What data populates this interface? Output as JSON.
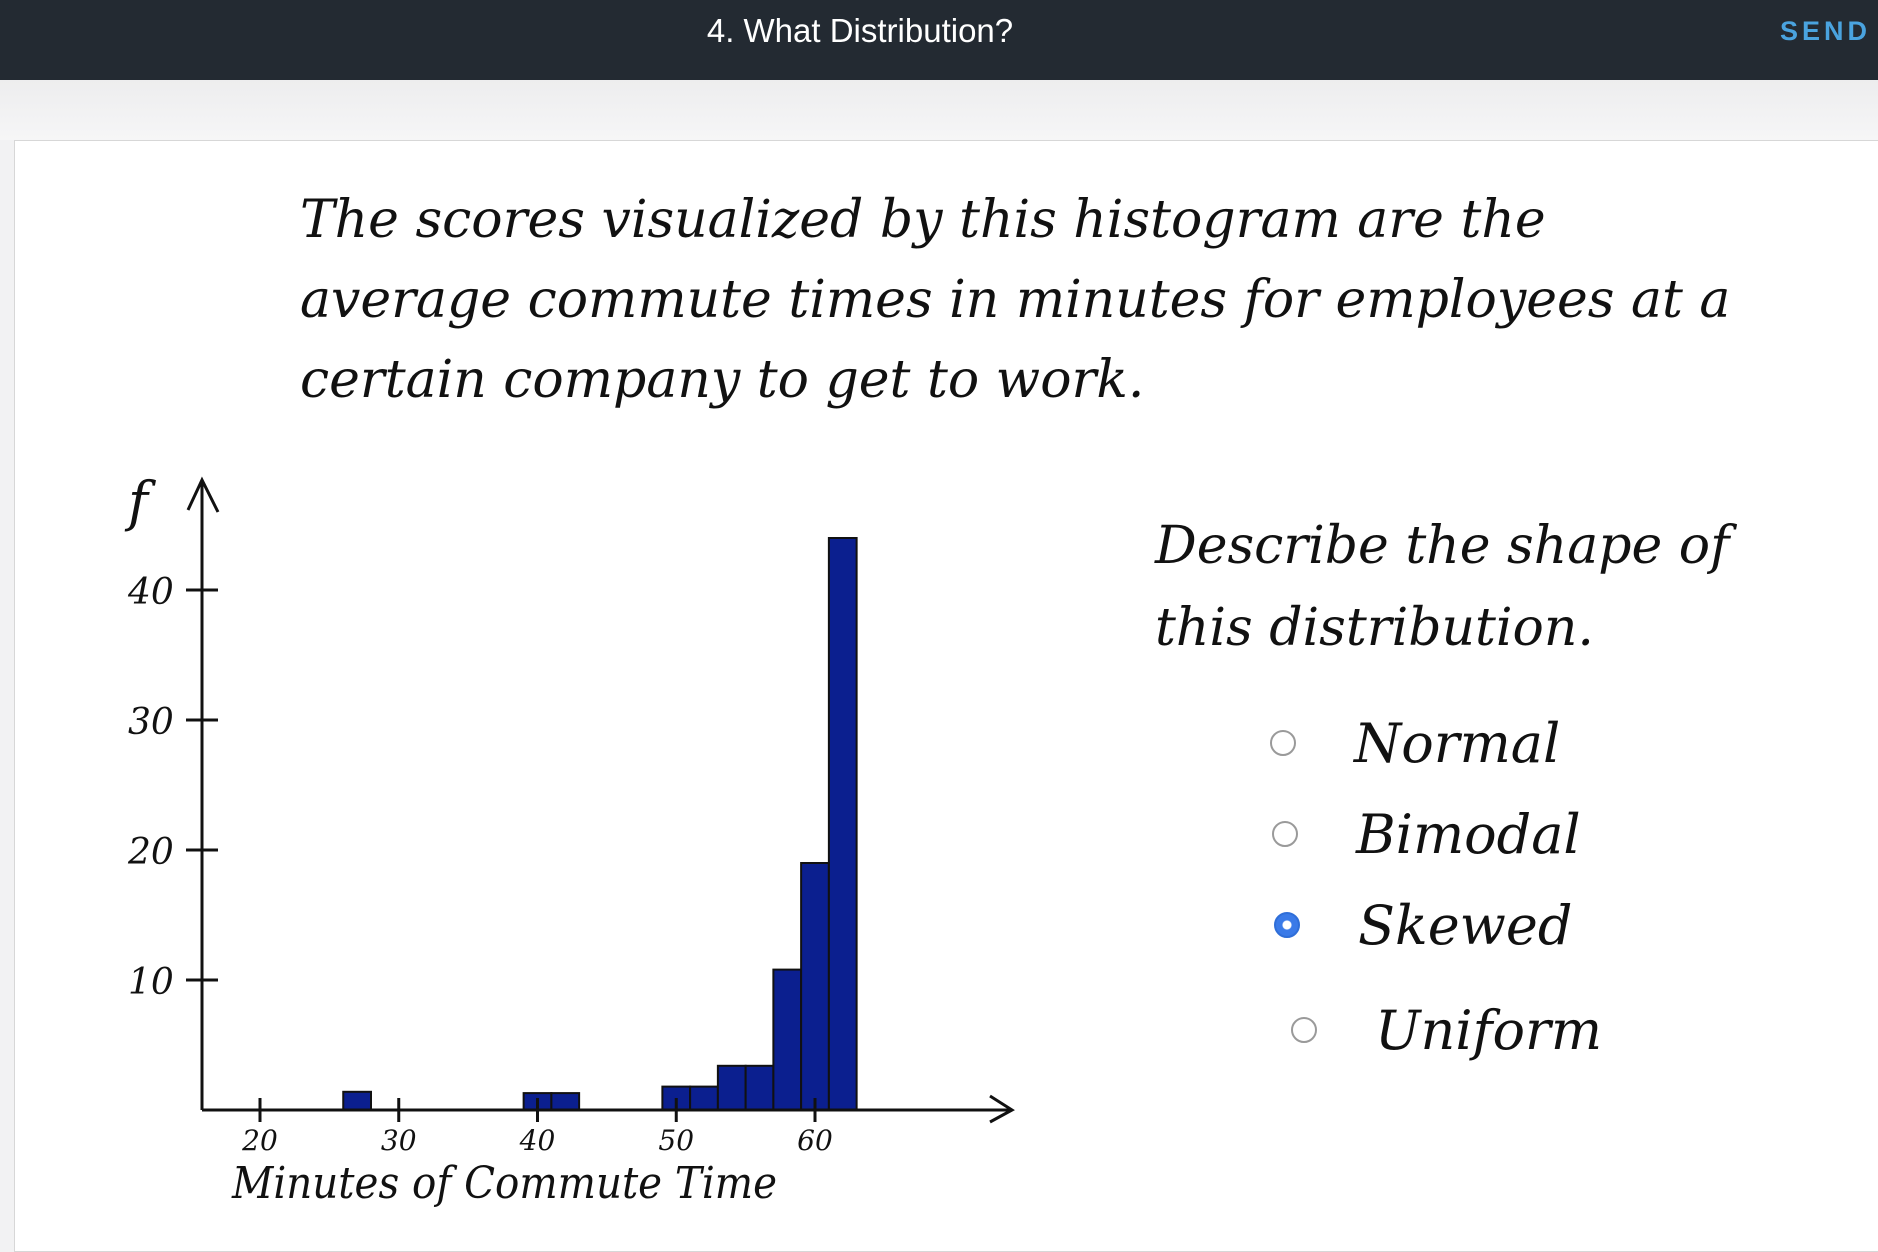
{
  "header": {
    "title": "4. What Distribution?",
    "send_label": "SEND F"
  },
  "prompt": {
    "text": "The scores visualized by this histogram are the average commute times in minutes for employees at a certain company to get to work."
  },
  "question": {
    "text": "Describe the shape of this distribution."
  },
  "options": [
    {
      "label": "Normal",
      "selected": false
    },
    {
      "label": "Bimodal",
      "selected": false
    },
    {
      "label": "Skewed",
      "selected": true
    },
    {
      "label": "Uniform",
      "selected": false
    }
  ],
  "chart_data": {
    "type": "bar",
    "title": "",
    "xlabel": "Minutes of Commute Time",
    "ylabel": "f",
    "xlim": [
      16,
      75
    ],
    "ylim": [
      0,
      44
    ],
    "x_ticks": [
      20,
      30,
      40,
      50,
      60
    ],
    "y_ticks": [
      10,
      20,
      30,
      40
    ],
    "bar_color": "#0b1f8f",
    "bins": [
      {
        "start": 26,
        "end": 28,
        "value": 1.4
      },
      {
        "start": 39,
        "end": 41,
        "value": 1.3
      },
      {
        "start": 41,
        "end": 43,
        "value": 1.3
      },
      {
        "start": 49,
        "end": 51,
        "value": 1.8
      },
      {
        "start": 51,
        "end": 53,
        "value": 1.8
      },
      {
        "start": 53,
        "end": 55,
        "value": 3.4
      },
      {
        "start": 55,
        "end": 57,
        "value": 3.4
      },
      {
        "start": 57,
        "end": 59,
        "value": 10.8
      },
      {
        "start": 59,
        "end": 61,
        "value": 19
      },
      {
        "start": 61,
        "end": 63,
        "value": 44
      }
    ]
  }
}
